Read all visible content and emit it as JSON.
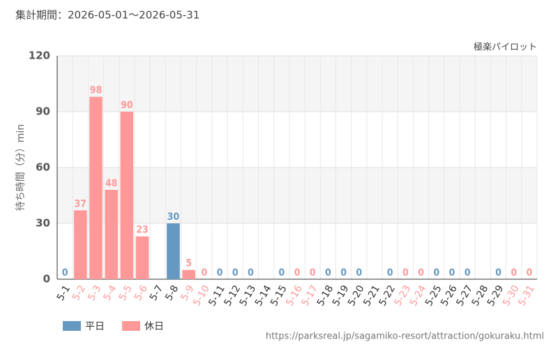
{
  "chart_data": {
    "type": "bar",
    "title": "集計期間：2026-05-01～2026-05-31",
    "subtitle": "極楽パイロット",
    "y_label": "待ち時間（分）min",
    "source": "https://parksreal.jp/sagamiko-resort/attraction/gokuraku.html",
    "categories": [
      "5-1",
      "5-2",
      "5-3",
      "5-4",
      "5-5",
      "5-6",
      "5-7",
      "5-8",
      "5-9",
      "5-10",
      "5-11",
      "5-12",
      "5-13",
      "5-14",
      "5-15",
      "5-16",
      "5-17",
      "5-18",
      "5-19",
      "5-20",
      "5-21",
      "5-22",
      "5-23",
      "5-24",
      "5-25",
      "5-26",
      "5-27",
      "5-28",
      "5-29",
      "5-30",
      "5-31"
    ],
    "series": [
      {
        "name": "平日",
        "color": "#6699c2",
        "values": [
          0,
          null,
          null,
          null,
          null,
          null,
          null,
          30,
          null,
          null,
          0,
          0,
          0,
          null,
          0,
          null,
          null,
          0,
          0,
          0,
          null,
          0,
          null,
          null,
          0,
          0,
          0,
          null,
          0,
          null,
          null
        ]
      },
      {
        "name": "休日",
        "color": "#ff9999",
        "values": [
          null,
          37,
          98,
          48,
          90,
          23,
          null,
          null,
          5,
          0,
          null,
          null,
          null,
          null,
          null,
          0,
          0,
          null,
          null,
          null,
          null,
          null,
          0,
          0,
          null,
          null,
          null,
          null,
          null,
          0,
          0
        ]
      }
    ],
    "ylim": [
      0,
      120
    ],
    "yticks": [
      0,
      30,
      60,
      90,
      120
    ],
    "grid": true
  }
}
